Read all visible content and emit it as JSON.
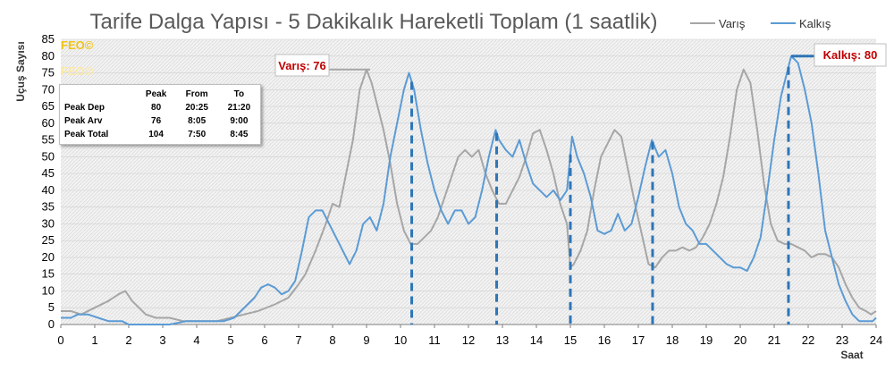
{
  "chart_data": {
    "type": "line",
    "title": "Tarife Dalga Yapısı - 5 Dakikalık Hareketli Toplam (1 saatlik)",
    "xlabel": "Saat",
    "ylabel": "Uçuş Sayısı",
    "xlim": [
      0,
      24
    ],
    "ylim": [
      0,
      85
    ],
    "x_ticks": [
      "0",
      "1",
      "2",
      "3",
      "4",
      "5",
      "6",
      "7",
      "8",
      "9",
      "10",
      "11",
      "12",
      "13",
      "14",
      "15",
      "16",
      "17",
      "18",
      "19",
      "20",
      "21",
      "22",
      "23",
      "24"
    ],
    "y_ticks": [
      "0",
      "5",
      "10",
      "15",
      "20",
      "25",
      "30",
      "35",
      "40",
      "45",
      "50",
      "55",
      "60",
      "65",
      "70",
      "75",
      "80",
      "85"
    ],
    "legend_position": "top-right",
    "series": [
      {
        "name": "Varış",
        "color": "#a6a6a6",
        "points": [
          [
            0,
            4
          ],
          [
            0.3,
            4
          ],
          [
            0.6,
            3
          ],
          [
            1,
            5
          ],
          [
            1.4,
            7
          ],
          [
            1.7,
            9
          ],
          [
            1.9,
            10
          ],
          [
            2.1,
            7
          ],
          [
            2.3,
            5
          ],
          [
            2.5,
            3
          ],
          [
            2.8,
            2
          ],
          [
            3.2,
            2
          ],
          [
            3.6,
            1
          ],
          [
            4.2,
            1
          ],
          [
            4.6,
            1
          ],
          [
            5,
            2
          ],
          [
            5.4,
            3
          ],
          [
            5.8,
            4
          ],
          [
            6.3,
            6
          ],
          [
            6.7,
            8
          ],
          [
            7,
            12
          ],
          [
            7.2,
            15
          ],
          [
            7.5,
            22
          ],
          [
            7.8,
            30
          ],
          [
            8,
            36
          ],
          [
            8.2,
            35
          ],
          [
            8.4,
            45
          ],
          [
            8.6,
            55
          ],
          [
            8.8,
            70
          ],
          [
            9,
            76
          ],
          [
            9.15,
            72
          ],
          [
            9.3,
            66
          ],
          [
            9.5,
            58
          ],
          [
            9.7,
            48
          ],
          [
            9.9,
            36
          ],
          [
            10.1,
            28
          ],
          [
            10.3,
            24
          ],
          [
            10.5,
            24
          ],
          [
            10.7,
            26
          ],
          [
            10.9,
            28
          ],
          [
            11.1,
            32
          ],
          [
            11.3,
            38
          ],
          [
            11.5,
            44
          ],
          [
            11.7,
            50
          ],
          [
            11.9,
            52
          ],
          [
            12.1,
            50
          ],
          [
            12.3,
            52
          ],
          [
            12.5,
            45
          ],
          [
            12.7,
            40
          ],
          [
            12.9,
            36
          ],
          [
            13.1,
            36
          ],
          [
            13.3,
            40
          ],
          [
            13.5,
            44
          ],
          [
            13.7,
            50
          ],
          [
            13.9,
            57
          ],
          [
            14.1,
            58
          ],
          [
            14.3,
            52
          ],
          [
            14.5,
            45
          ],
          [
            14.7,
            36
          ],
          [
            14.9,
            30
          ],
          [
            15,
            17
          ],
          [
            15.1,
            18
          ],
          [
            15.3,
            22
          ],
          [
            15.5,
            28
          ],
          [
            15.7,
            40
          ],
          [
            15.9,
            50
          ],
          [
            16.1,
            54
          ],
          [
            16.3,
            58
          ],
          [
            16.5,
            56
          ],
          [
            16.7,
            46
          ],
          [
            16.9,
            36
          ],
          [
            17.1,
            27
          ],
          [
            17.3,
            18
          ],
          [
            17.5,
            17
          ],
          [
            17.7,
            20
          ],
          [
            17.9,
            22
          ],
          [
            18.1,
            22
          ],
          [
            18.3,
            23
          ],
          [
            18.5,
            22
          ],
          [
            18.7,
            23
          ],
          [
            18.9,
            26
          ],
          [
            19.1,
            30
          ],
          [
            19.3,
            36
          ],
          [
            19.5,
            44
          ],
          [
            19.7,
            56
          ],
          [
            19.9,
            70
          ],
          [
            20.1,
            76
          ],
          [
            20.3,
            72
          ],
          [
            20.5,
            58
          ],
          [
            20.7,
            42
          ],
          [
            20.9,
            30
          ],
          [
            21.1,
            25
          ],
          [
            21.3,
            24
          ],
          [
            21.5,
            24
          ],
          [
            21.7,
            23
          ],
          [
            21.9,
            22
          ],
          [
            22.1,
            20
          ],
          [
            22.3,
            21
          ],
          [
            22.5,
            21
          ],
          [
            22.7,
            20
          ],
          [
            22.9,
            17
          ],
          [
            23.1,
            12
          ],
          [
            23.3,
            8
          ],
          [
            23.5,
            5
          ],
          [
            23.7,
            4
          ],
          [
            23.85,
            3
          ],
          [
            24,
            4
          ]
        ]
      },
      {
        "name": "Kalkış",
        "color": "#5b9bd5",
        "points": [
          [
            0,
            2
          ],
          [
            0.3,
            2
          ],
          [
            0.5,
            3
          ],
          [
            0.8,
            3
          ],
          [
            1.1,
            2
          ],
          [
            1.4,
            1
          ],
          [
            1.8,
            1
          ],
          [
            2,
            0
          ],
          [
            2.5,
            0
          ],
          [
            3.2,
            0
          ],
          [
            3.7,
            1
          ],
          [
            4.3,
            1
          ],
          [
            4.8,
            1
          ],
          [
            5.1,
            2
          ],
          [
            5.3,
            4
          ],
          [
            5.5,
            6
          ],
          [
            5.7,
            8
          ],
          [
            5.9,
            11
          ],
          [
            6.1,
            12
          ],
          [
            6.3,
            11
          ],
          [
            6.5,
            9
          ],
          [
            6.7,
            10
          ],
          [
            6.9,
            13
          ],
          [
            7.1,
            22
          ],
          [
            7.3,
            32
          ],
          [
            7.5,
            34
          ],
          [
            7.7,
            34
          ],
          [
            7.9,
            30
          ],
          [
            8.1,
            26
          ],
          [
            8.3,
            22
          ],
          [
            8.5,
            18
          ],
          [
            8.7,
            22
          ],
          [
            8.9,
            30
          ],
          [
            9.1,
            32
          ],
          [
            9.3,
            28
          ],
          [
            9.5,
            36
          ],
          [
            9.7,
            50
          ],
          [
            9.9,
            60
          ],
          [
            10.1,
            70
          ],
          [
            10.25,
            75
          ],
          [
            10.4,
            70
          ],
          [
            10.6,
            58
          ],
          [
            10.8,
            48
          ],
          [
            11,
            40
          ],
          [
            11.2,
            34
          ],
          [
            11.4,
            30
          ],
          [
            11.6,
            34
          ],
          [
            11.8,
            34
          ],
          [
            12,
            30
          ],
          [
            12.2,
            32
          ],
          [
            12.4,
            40
          ],
          [
            12.6,
            50
          ],
          [
            12.8,
            58
          ],
          [
            12.9,
            55
          ],
          [
            13.1,
            52
          ],
          [
            13.3,
            50
          ],
          [
            13.5,
            55
          ],
          [
            13.7,
            48
          ],
          [
            13.9,
            42
          ],
          [
            14.1,
            40
          ],
          [
            14.3,
            38
          ],
          [
            14.5,
            40
          ],
          [
            14.7,
            37
          ],
          [
            14.9,
            40
          ],
          [
            15.05,
            56
          ],
          [
            15.2,
            50
          ],
          [
            15.4,
            45
          ],
          [
            15.6,
            38
          ],
          [
            15.8,
            28
          ],
          [
            16,
            27
          ],
          [
            16.2,
            28
          ],
          [
            16.4,
            33
          ],
          [
            16.6,
            28
          ],
          [
            16.8,
            30
          ],
          [
            17,
            38
          ],
          [
            17.2,
            47
          ],
          [
            17.4,
            55
          ],
          [
            17.6,
            50
          ],
          [
            17.8,
            52
          ],
          [
            18,
            45
          ],
          [
            18.2,
            35
          ],
          [
            18.4,
            30
          ],
          [
            18.6,
            28
          ],
          [
            18.8,
            24
          ],
          [
            19,
            24
          ],
          [
            19.2,
            22
          ],
          [
            19.4,
            20
          ],
          [
            19.6,
            18
          ],
          [
            19.8,
            17
          ],
          [
            20,
            17
          ],
          [
            20.2,
            16
          ],
          [
            20.4,
            20
          ],
          [
            20.6,
            26
          ],
          [
            20.8,
            40
          ],
          [
            21,
            55
          ],
          [
            21.2,
            68
          ],
          [
            21.4,
            76
          ],
          [
            21.5,
            80
          ],
          [
            21.7,
            78
          ],
          [
            21.9,
            70
          ],
          [
            22.1,
            60
          ],
          [
            22.3,
            45
          ],
          [
            22.5,
            28
          ],
          [
            22.7,
            20
          ],
          [
            22.9,
            12
          ],
          [
            23.1,
            7
          ],
          [
            23.3,
            3
          ],
          [
            23.5,
            1
          ],
          [
            23.7,
            1
          ],
          [
            23.9,
            1
          ],
          [
            24,
            2
          ]
        ]
      }
    ],
    "peak_lines": [
      10.33,
      12.83,
      15.0,
      17.42,
      21.42
    ],
    "callouts": [
      {
        "label": "Varış: 76",
        "x": 9,
        "y": 76
      },
      {
        "label": "Kalkış: 80",
        "x": 21.5,
        "y": 80
      }
    ],
    "watermark_1": "FEO©",
    "watermark_2": "FEO©",
    "peak_table": {
      "headers": [
        "",
        "Peak",
        "From",
        "To"
      ],
      "rows": [
        [
          "Peak Dep",
          "80",
          "20:25",
          "21:20"
        ],
        [
          "Peak Arv",
          "76",
          "8:05",
          "9:00"
        ],
        [
          "Peak Total",
          "104",
          "7:50",
          "8:45"
        ]
      ]
    }
  }
}
